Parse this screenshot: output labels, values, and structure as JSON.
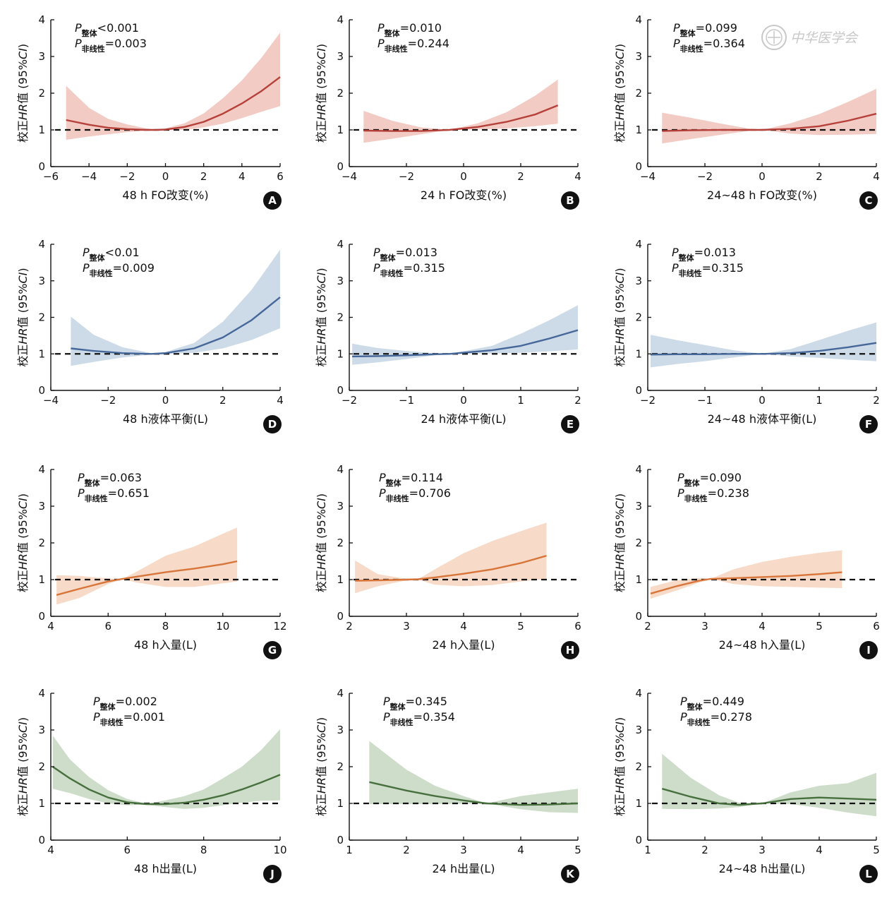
{
  "watermark": "中华医学会",
  "ylabel": {
    "prefix": "校正",
    "italic_hr": "HR",
    "suffix": "值 (95%",
    "italic_ci": "CI",
    "close": ")"
  },
  "colors": {
    "red": "#b5413a",
    "red_band": "#f2c8c2",
    "blue": "#46679a",
    "blue_band": "#cad8e6",
    "orange": "#d8753a",
    "orange_band": "#f7d8c4",
    "green": "#48703f",
    "green_band": "#cadbc6"
  },
  "chart_data": [
    {
      "panel": "A",
      "type": "line",
      "color": "red",
      "xlabel": "48 h FO改变(%)",
      "xlim": [
        -6,
        6
      ],
      "xticks": [
        -6,
        -4,
        -2,
        0,
        2,
        4,
        6
      ],
      "xtick_labels": [
        "−6",
        "−4",
        "−2",
        "0",
        "2",
        "4",
        "6"
      ],
      "ylim": [
        0,
        4
      ],
      "yticks": [
        0,
        1,
        2,
        3,
        4
      ],
      "reference_line": 1,
      "p_overall": {
        "label": "P",
        "sub": "整体",
        "value": "<0.001"
      },
      "p_nonlinear": {
        "label": "P",
        "sub": "非线性",
        "value": "=0.003"
      },
      "x": [
        -5.2,
        -4,
        -3,
        -2,
        -1,
        -0.5,
        0,
        1,
        2,
        3,
        4,
        5,
        6
      ],
      "y": [
        1.27,
        1.14,
        1.06,
        1.02,
        1.0,
        1.0,
        1.01,
        1.08,
        1.22,
        1.44,
        1.72,
        2.05,
        2.44
      ],
      "lower": [
        0.73,
        0.82,
        0.88,
        0.94,
        0.98,
        1.0,
        0.99,
        1.0,
        1.07,
        1.17,
        1.32,
        1.49,
        1.65
      ],
      "upper": [
        2.2,
        1.6,
        1.3,
        1.15,
        1.04,
        1.0,
        1.04,
        1.18,
        1.45,
        1.86,
        2.35,
        2.95,
        3.65
      ]
    },
    {
      "panel": "B",
      "type": "line",
      "color": "red",
      "xlabel": "24 h FO改变(%)",
      "xlim": [
        -4,
        4
      ],
      "xticks": [
        -4,
        -2,
        0,
        2,
        4
      ],
      "xtick_labels": [
        "−4",
        "−2",
        "0",
        "2",
        "4"
      ],
      "ylim": [
        0,
        4
      ],
      "yticks": [
        0,
        1,
        2,
        3,
        4
      ],
      "reference_line": 1,
      "p_overall": {
        "label": "P",
        "sub": "整体",
        "value": "=0.010"
      },
      "p_nonlinear": {
        "label": "P",
        "sub": "非线性",
        "value": "=0.244"
      },
      "x": [
        -3.5,
        -2.5,
        -1.5,
        -0.5,
        0.5,
        1.5,
        2.5,
        3.3
      ],
      "y": [
        0.98,
        0.97,
        0.97,
        1.0,
        1.08,
        1.22,
        1.42,
        1.67
      ],
      "lower": [
        0.65,
        0.76,
        0.88,
        1.0,
        1.01,
        1.04,
        1.1,
        1.17
      ],
      "upper": [
        1.52,
        1.25,
        1.07,
        1.0,
        1.18,
        1.48,
        1.93,
        2.37
      ]
    },
    {
      "panel": "C",
      "type": "line",
      "color": "red",
      "xlabel": "24~48 h FO改变(%)",
      "xlim": [
        -4,
        4
      ],
      "xticks": [
        -4,
        -2,
        0,
        2,
        4
      ],
      "xtick_labels": [
        "−4",
        "−2",
        "0",
        "2",
        "4"
      ],
      "ylim": [
        0,
        4
      ],
      "yticks": [
        0,
        1,
        2,
        3,
        4
      ],
      "reference_line": 1,
      "p_overall": {
        "label": "P",
        "sub": "整体",
        "value": "=0.099"
      },
      "p_nonlinear": {
        "label": "P",
        "sub": "非线性",
        "value": "=0.364"
      },
      "x": [
        -3.5,
        -2.5,
        -1.5,
        -0.5,
        0,
        1,
        2,
        3,
        4
      ],
      "y": [
        0.97,
        0.99,
        1.0,
        1.0,
        1.0,
        1.03,
        1.1,
        1.25,
        1.44
      ],
      "lower": [
        0.63,
        0.75,
        0.86,
        0.97,
        1.0,
        0.9,
        0.86,
        0.87,
        0.89
      ],
      "upper": [
        1.47,
        1.33,
        1.18,
        1.04,
        1.0,
        1.18,
        1.43,
        1.76,
        2.12
      ]
    },
    {
      "panel": "D",
      "type": "line",
      "color": "blue",
      "xlabel": "48 h液体平衡(L)",
      "xlim": [
        -4,
        4
      ],
      "xticks": [
        -4,
        -2,
        0,
        2,
        4
      ],
      "xtick_labels": [
        "−4",
        "−2",
        "0",
        "2",
        "4"
      ],
      "ylim": [
        0,
        4
      ],
      "yticks": [
        0,
        1,
        2,
        3,
        4
      ],
      "reference_line": 1,
      "p_overall": {
        "label": "P",
        "sub": "整体",
        "value": "<0.01"
      },
      "p_nonlinear": {
        "label": "P",
        "sub": "非线性",
        "value": "=0.009"
      },
      "x": [
        -3.3,
        -2.5,
        -1.5,
        -0.5,
        0,
        1,
        2,
        3,
        4
      ],
      "y": [
        1.15,
        1.08,
        1.02,
        1.0,
        1.02,
        1.15,
        1.45,
        1.92,
        2.55
      ],
      "lower": [
        0.67,
        0.78,
        0.9,
        0.98,
        0.99,
        1.03,
        1.15,
        1.38,
        1.7
      ],
      "upper": [
        2.02,
        1.52,
        1.18,
        1.02,
        1.05,
        1.3,
        1.88,
        2.75,
        3.85
      ]
    },
    {
      "panel": "E",
      "type": "line",
      "color": "blue",
      "xlabel": "24 h液体平衡(L)",
      "xlim": [
        -2,
        2
      ],
      "xticks": [
        -2,
        -1,
        0,
        1,
        2
      ],
      "xtick_labels": [
        "−2",
        "−1",
        "0",
        "1",
        "2"
      ],
      "ylim": [
        0,
        4
      ],
      "yticks": [
        0,
        1,
        2,
        3,
        4
      ],
      "reference_line": 1,
      "p_overall": {
        "label": "P",
        "sub": "整体",
        "value": "=0.013"
      },
      "p_nonlinear": {
        "label": "P",
        "sub": "非线性",
        "value": "=0.315"
      },
      "x": [
        -1.95,
        -1.5,
        -1,
        -0.5,
        -0.25,
        0.5,
        1,
        1.5,
        2
      ],
      "y": [
        0.93,
        0.94,
        0.96,
        0.99,
        1.0,
        1.1,
        1.22,
        1.42,
        1.65
      ],
      "lower": [
        0.7,
        0.77,
        0.86,
        0.96,
        1.0,
        1.01,
        1.03,
        1.07,
        1.12
      ],
      "upper": [
        1.28,
        1.16,
        1.08,
        1.02,
        1.0,
        1.22,
        1.55,
        1.92,
        2.33
      ]
    },
    {
      "panel": "F",
      "type": "line",
      "color": "blue",
      "xlabel": "24~48 h液体平衡(L)",
      "xlim": [
        -2,
        2
      ],
      "xticks": [
        -2,
        -1,
        0,
        1,
        2
      ],
      "xtick_labels": [
        "−2",
        "−1",
        "0",
        "1",
        "2"
      ],
      "ylim": [
        0,
        4
      ],
      "yticks": [
        0,
        1,
        2,
        3,
        4
      ],
      "reference_line": 1,
      "p_overall": {
        "label": "P",
        "sub": "整体",
        "value": "=0.013"
      },
      "p_nonlinear": {
        "label": "P",
        "sub": "非线性",
        "value": "=0.315"
      },
      "x": [
        -1.95,
        -1.5,
        -1,
        -0.5,
        0,
        0.5,
        1,
        1.5,
        2
      ],
      "y": [
        0.98,
        0.99,
        0.99,
        1.0,
        1.0,
        1.02,
        1.08,
        1.18,
        1.3
      ],
      "lower": [
        0.63,
        0.72,
        0.8,
        0.9,
        1.0,
        0.93,
        0.89,
        0.84,
        0.8
      ],
      "upper": [
        1.52,
        1.38,
        1.24,
        1.1,
        1.0,
        1.13,
        1.38,
        1.63,
        1.86
      ]
    },
    {
      "panel": "G",
      "type": "line",
      "color": "orange",
      "xlabel": "48 h入量(L)",
      "xlim": [
        4,
        12
      ],
      "xticks": [
        4,
        6,
        8,
        10,
        12
      ],
      "xtick_labels": [
        "4",
        "6",
        "8",
        "10",
        "12"
      ],
      "ylim": [
        0,
        4
      ],
      "yticks": [
        0,
        1,
        2,
        3,
        4
      ],
      "reference_line": 1,
      "p_overall": {
        "label": "P",
        "sub": "整体",
        "value": "=0.063"
      },
      "p_nonlinear": {
        "label": "P",
        "sub": "非线性",
        "value": "=0.651"
      },
      "x": [
        4.2,
        5,
        6,
        6.5,
        7,
        8,
        9,
        10,
        10.5
      ],
      "y": [
        0.58,
        0.75,
        0.95,
        1.02,
        1.08,
        1.2,
        1.3,
        1.42,
        1.5
      ],
      "lower": [
        0.32,
        0.5,
        0.88,
        1.02,
        0.92,
        0.8,
        0.8,
        0.9,
        0.95
      ],
      "upper": [
        1.12,
        1.1,
        1.03,
        1.02,
        1.22,
        1.65,
        1.9,
        2.25,
        2.42
      ]
    },
    {
      "panel": "H",
      "type": "line",
      "color": "orange",
      "xlabel": "24 h入量(L)",
      "xlim": [
        2,
        6
      ],
      "xticks": [
        2,
        3,
        4,
        5,
        6
      ],
      "xtick_labels": [
        "2",
        "3",
        "4",
        "5",
        "6"
      ],
      "ylim": [
        0,
        4
      ],
      "yticks": [
        0,
        1,
        2,
        3,
        4
      ],
      "reference_line": 1,
      "p_overall": {
        "label": "P",
        "sub": "整体",
        "value": "=0.114"
      },
      "p_nonlinear": {
        "label": "P",
        "sub": "非线性",
        "value": "=0.706"
      },
      "x": [
        2.1,
        2.5,
        3,
        3.2,
        3.5,
        4,
        4.5,
        5,
        5.45
      ],
      "y": [
        0.97,
        0.98,
        1.0,
        1.01,
        1.06,
        1.16,
        1.28,
        1.45,
        1.65
      ],
      "lower": [
        0.63,
        0.82,
        0.98,
        1.0,
        0.86,
        0.82,
        0.85,
        0.95,
        1.02
      ],
      "upper": [
        1.52,
        1.15,
        1.02,
        1.01,
        1.28,
        1.72,
        2.05,
        2.32,
        2.55
      ]
    },
    {
      "panel": "I",
      "type": "line",
      "color": "orange",
      "xlabel": "24~48 h入量(L)",
      "xlim": [
        2,
        6
      ],
      "xticks": [
        2,
        3,
        4,
        5,
        6
      ],
      "xtick_labels": [
        "2",
        "3",
        "4",
        "5",
        "6"
      ],
      "ylim": [
        0,
        4
      ],
      "yticks": [
        0,
        1,
        2,
        3,
        4
      ],
      "reference_line": 1,
      "p_overall": {
        "label": "P",
        "sub": "整体",
        "value": "=0.090"
      },
      "p_nonlinear": {
        "label": "P",
        "sub": "非线性",
        "value": "=0.238"
      },
      "x": [
        2.05,
        2.5,
        2.9,
        3.1,
        3.5,
        4,
        4.5,
        5,
        5.4
      ],
      "y": [
        0.62,
        0.82,
        0.97,
        1.02,
        1.04,
        1.07,
        1.1,
        1.15,
        1.2
      ],
      "lower": [
        0.48,
        0.7,
        0.92,
        1.02,
        0.88,
        0.82,
        0.8,
        0.78,
        0.77
      ],
      "upper": [
        0.8,
        0.98,
        1.04,
        1.02,
        1.28,
        1.48,
        1.62,
        1.73,
        1.8
      ]
    },
    {
      "panel": "J",
      "type": "line",
      "color": "green",
      "xlabel": "48 h出量(L)",
      "xlim": [
        4,
        10
      ],
      "xticks": [
        4,
        6,
        8,
        10
      ],
      "xtick_labels": [
        "4",
        "6",
        "8",
        "10"
      ],
      "ylim": [
        0,
        4
      ],
      "yticks": [
        0,
        1,
        2,
        3,
        4
      ],
      "reference_line": 1,
      "p_overall": {
        "label": "P",
        "sub": "整体",
        "value": "=0.002"
      },
      "p_nonlinear": {
        "label": "P",
        "sub": "非线性",
        "value": "=0.001"
      },
      "x": [
        4.05,
        4.5,
        5,
        5.5,
        6,
        6.5,
        7,
        7.5,
        8,
        8.5,
        9,
        9.5,
        10
      ],
      "y": [
        2.0,
        1.68,
        1.38,
        1.16,
        1.03,
        0.98,
        0.98,
        1.02,
        1.1,
        1.22,
        1.38,
        1.57,
        1.78
      ],
      "lower": [
        1.4,
        1.28,
        1.12,
        1.0,
        0.95,
        0.97,
        0.9,
        0.85,
        0.88,
        0.95,
        1.02,
        1.07,
        1.08
      ],
      "upper": [
        2.85,
        2.2,
        1.72,
        1.36,
        1.12,
        0.99,
        1.08,
        1.2,
        1.38,
        1.68,
        2.0,
        2.45,
        3.02
      ]
    },
    {
      "panel": "K",
      "type": "line",
      "color": "green",
      "xlabel": "24 h出量(L)",
      "xlim": [
        1,
        5
      ],
      "xticks": [
        1,
        2,
        3,
        4,
        5
      ],
      "xtick_labels": [
        "1",
        "2",
        "3",
        "4",
        "5"
      ],
      "ylim": [
        0,
        4
      ],
      "yticks": [
        0,
        1,
        2,
        3,
        4
      ],
      "reference_line": 1,
      "p_overall": {
        "label": "P",
        "sub": "整体",
        "value": "=0.345"
      },
      "p_nonlinear": {
        "label": "P",
        "sub": "非线性",
        "value": "=0.354"
      },
      "x": [
        1.35,
        2,
        2.5,
        3,
        3.4,
        4,
        4.5,
        5
      ],
      "y": [
        1.58,
        1.35,
        1.2,
        1.08,
        1.0,
        0.96,
        0.97,
        1.0
      ],
      "lower": [
        0.98,
        0.98,
        0.98,
        0.99,
        1.0,
        0.84,
        0.76,
        0.74
      ],
      "upper": [
        2.7,
        1.92,
        1.48,
        1.2,
        1.0,
        1.2,
        1.3,
        1.4
      ]
    },
    {
      "panel": "L",
      "type": "line",
      "color": "green",
      "xlabel": "24~48 h出量(L)",
      "xlim": [
        1,
        5
      ],
      "xticks": [
        1,
        2,
        3,
        4,
        5
      ],
      "xtick_labels": [
        "1",
        "2",
        "3",
        "4",
        "5"
      ],
      "ylim": [
        0,
        4
      ],
      "yticks": [
        0,
        1,
        2,
        3,
        4
      ],
      "reference_line": 1,
      "p_overall": {
        "label": "P",
        "sub": "整体",
        "value": "=0.449"
      },
      "p_nonlinear": {
        "label": "P",
        "sub": "非线性",
        "value": "=0.278"
      },
      "x": [
        1.25,
        1.75,
        2.25,
        2.6,
        3,
        3.5,
        4,
        4.5,
        5
      ],
      "y": [
        1.4,
        1.18,
        1.0,
        0.96,
        1.0,
        1.12,
        1.16,
        1.13,
        1.1
      ],
      "lower": [
        0.85,
        0.84,
        0.86,
        0.9,
        1.0,
        0.98,
        0.88,
        0.75,
        0.65
      ],
      "upper": [
        2.35,
        1.7,
        1.22,
        1.02,
        1.0,
        1.3,
        1.48,
        1.55,
        1.83
      ]
    }
  ]
}
